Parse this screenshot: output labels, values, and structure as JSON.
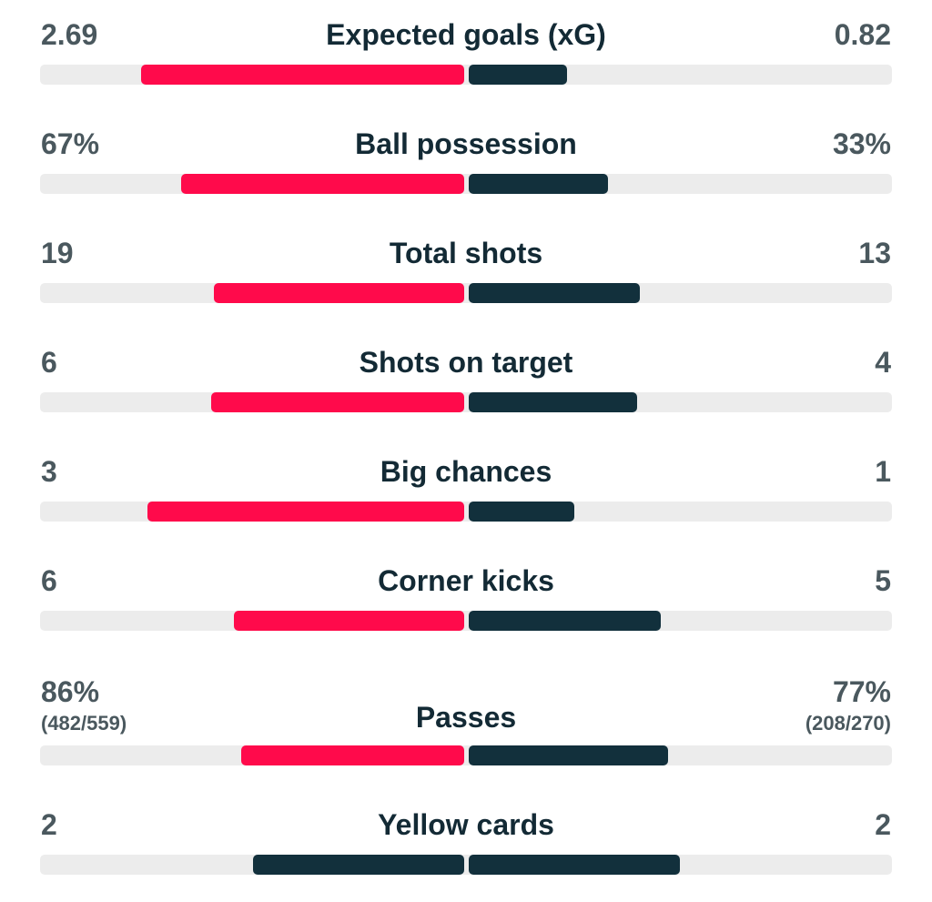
{
  "colors": {
    "highlight": "#ff0a4b",
    "normal": "#12303c",
    "track": "#ececec",
    "value_text": "#4a585e",
    "title_text": "#132a35"
  },
  "stats": [
    {
      "title": "Expected goals (xG)",
      "left": "2.69",
      "right": "0.82",
      "left_share": 0.766,
      "right_share": 0.234,
      "left_color": "highlight",
      "right_color": "normal"
    },
    {
      "title": "Ball possession",
      "left": "67%",
      "right": "33%",
      "left_share": 0.67,
      "right_share": 0.33,
      "left_color": "highlight",
      "right_color": "normal"
    },
    {
      "title": "Total shots",
      "left": "19",
      "right": "13",
      "left_share": 0.594,
      "right_share": 0.406,
      "left_color": "highlight",
      "right_color": "normal"
    },
    {
      "title": "Shots on target",
      "left": "6",
      "right": "4",
      "left_share": 0.6,
      "right_share": 0.4,
      "left_color": "highlight",
      "right_color": "normal"
    },
    {
      "title": "Big chances",
      "left": "3",
      "right": "1",
      "left_share": 0.75,
      "right_share": 0.25,
      "left_color": "highlight",
      "right_color": "normal"
    },
    {
      "title": "Corner kicks",
      "left": "6",
      "right": "5",
      "left_share": 0.545,
      "right_share": 0.455,
      "left_color": "highlight",
      "right_color": "normal"
    },
    {
      "title": "Passes",
      "left": "86%",
      "right": "77%",
      "left_sub": "(482/559)",
      "right_sub": "(208/270)",
      "left_share": 0.528,
      "right_share": 0.472,
      "left_color": "highlight",
      "right_color": "normal"
    },
    {
      "title": "Yellow cards",
      "left": "2",
      "right": "2",
      "left_share": 0.5,
      "right_share": 0.5,
      "left_color": "normal",
      "right_color": "normal"
    }
  ]
}
